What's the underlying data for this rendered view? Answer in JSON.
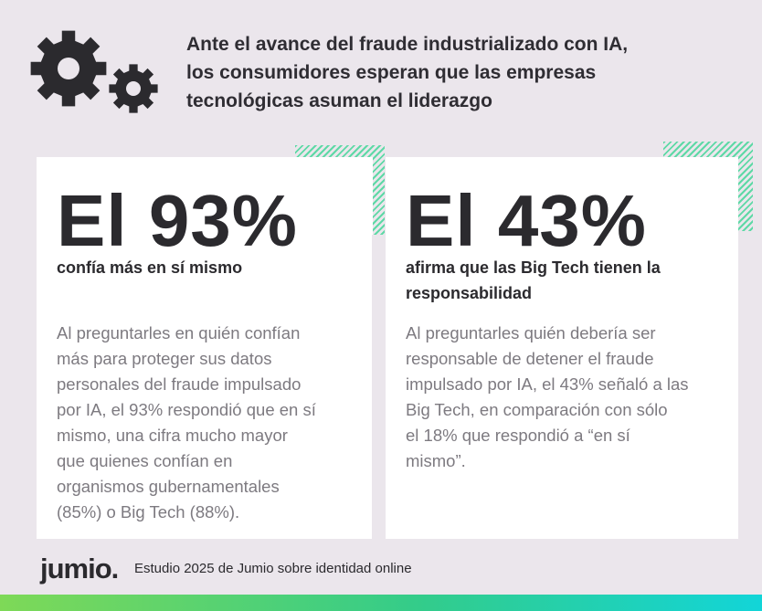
{
  "header": {
    "icon": "gears-icon",
    "headline_lines": [
      "Ante el avance del fraude industrializado con IA,",
      "los consumidores esperan que las empresas",
      "tecnológicas asuman el liderazgo"
    ]
  },
  "cards": [
    {
      "stat": "El 93%",
      "subtitle_lines": [
        "confía más en sí mismo"
      ],
      "description_lines": [
        "Al preguntarles en quién confían",
        "más para proteger sus datos",
        "personales del fraude impulsado",
        "por IA, el 93% respondió que en sí",
        "mismo, una cifra mucho mayor",
        "que quienes confían en",
        "organismos gubernamentales",
        "(85%) o Big Tech (88%)."
      ]
    },
    {
      "stat": "El 43%",
      "subtitle_lines": [
        "afirma que las Big Tech tienen la",
        "responsabilidad"
      ],
      "description_lines": [
        "Al preguntarles quién debería ser",
        "responsable de detener el fraude",
        "impulsado por IA, el 43% señaló a las",
        "Big Tech, en comparación con sólo",
        "el 18% que respondió a “en sí",
        "mismo”."
      ]
    }
  ],
  "footer": {
    "logo_text": "jumio",
    "logo_dot": ".",
    "study_text": "Estudio 2025 de Jumio sobre identidad online"
  },
  "colors": {
    "background": "#ebe6ec",
    "accent_hatch": "#5ed9a6",
    "bar_gradient_start": "#7ed957",
    "bar_gradient_end": "#12d5d8"
  }
}
